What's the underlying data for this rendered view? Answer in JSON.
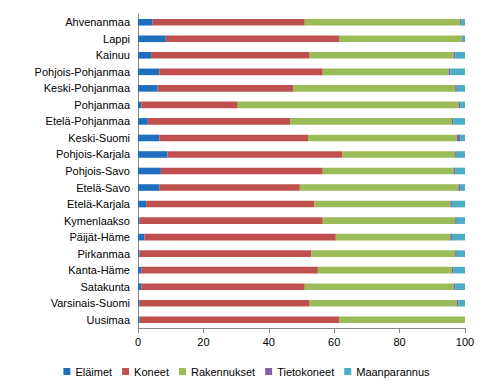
{
  "chart_data": {
    "type": "bar",
    "orientation": "horizontal",
    "stacked": true,
    "categories": [
      "Ahvenanmaa",
      "Lappi",
      "Kainuu",
      "Pohjois-Pohjanmaa",
      "Keski-Pohjanmaa",
      "Pohjanmaa",
      "Etelä-Pohjanmaa",
      "Keski-Suomi",
      "Pohjois-Karjala",
      "Pohjois-Savo",
      "Etelä-Savo",
      "Etelä-Karjala",
      "Kymenlaakso",
      "Päijät-Häme",
      "Pirkanmaa",
      "Kanta-Häme",
      "Satakunta",
      "Varsinais-Suomi",
      "Uusimaa"
    ],
    "series": [
      {
        "name": "Eläimet",
        "color": "#1f6fc0",
        "values": [
          4.5,
          8.5,
          4,
          6.5,
          6,
          1,
          3,
          6.5,
          9,
          7,
          6.5,
          2.5,
          0.5,
          2,
          0.5,
          1,
          1,
          0.5,
          0.5
        ]
      },
      {
        "name": "Koneet",
        "color": "#c0504d",
        "values": [
          46.5,
          53,
          48.5,
          50,
          41.5,
          29.5,
          43.5,
          45.5,
          53.5,
          49.5,
          43,
          51.5,
          56,
          58.5,
          52.5,
          54,
          50,
          52,
          61
        ]
      },
      {
        "name": "Rakennukset",
        "color": "#9bbb59",
        "values": [
          47.5,
          37.5,
          44,
          38.5,
          49.5,
          67.5,
          49.5,
          45.5,
          34.5,
          40,
          48.5,
          41.5,
          40.5,
          35,
          44,
          41,
          45.5,
          45,
          38.5
        ]
      },
      {
        "name": "Tietokoneet",
        "color": "#8064a2",
        "values": [
          0.3,
          0.3,
          0.5,
          0.5,
          0.5,
          0.5,
          0.5,
          1,
          0.5,
          0.5,
          0.5,
          0.5,
          0.5,
          0.5,
          0.5,
          0.5,
          0.5,
          0.5,
          0
        ]
      },
      {
        "name": "Maanparannus",
        "color": "#4bacc6",
        "values": [
          1.2,
          0.7,
          3,
          4.5,
          2.5,
          1.5,
          3.5,
          1.5,
          2.5,
          3,
          1.5,
          4,
          2.5,
          4,
          2.5,
          3.5,
          3,
          2,
          0
        ]
      }
    ],
    "xlim": [
      0,
      100
    ],
    "xticks": [
      0,
      20,
      40,
      60,
      80,
      100
    ],
    "grid": false,
    "legend": "bottom"
  }
}
